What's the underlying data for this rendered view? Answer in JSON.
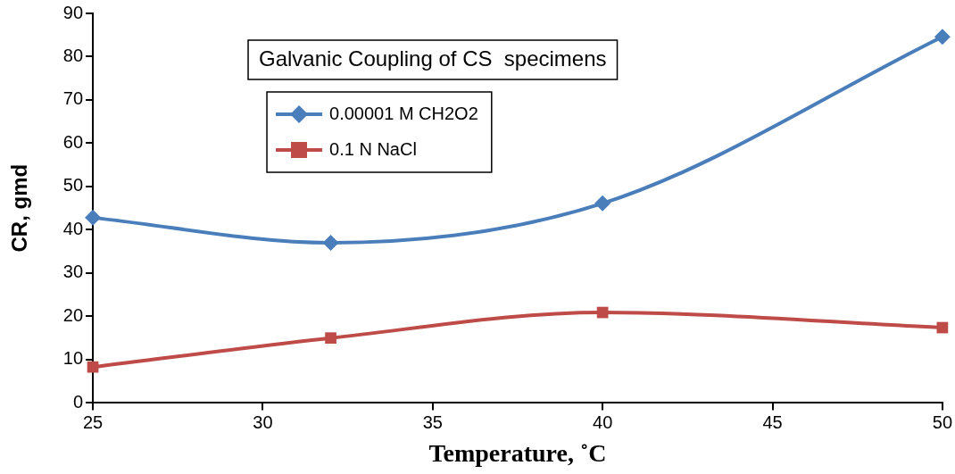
{
  "chart_data": {
    "type": "line",
    "title": "Galvanic Coupling of CS  specimens",
    "xlabel": "Temperature, ˚C",
    "ylabel": "CR, gmd",
    "x": [
      25,
      32,
      40,
      50
    ],
    "series": [
      {
        "name": "0.00001 M CH2O2",
        "color": "#4a7ebb",
        "marker": "diamond",
        "values": [
          42.8,
          37.0,
          46.1,
          84.6
        ]
      },
      {
        "name": "0.1 N NaCl",
        "color": "#be4b48",
        "marker": "square",
        "values": [
          8.3,
          15.0,
          20.9,
          17.4
        ]
      }
    ],
    "xlim": [
      25,
      50
    ],
    "xticks": [
      25,
      30,
      35,
      40,
      45,
      50
    ],
    "ylim": [
      0,
      90
    ],
    "yticks": [
      0,
      10,
      20,
      30,
      40,
      50,
      60,
      70,
      80,
      90
    ],
    "grid": false,
    "legend": "top left",
    "line_style": "solid"
  }
}
